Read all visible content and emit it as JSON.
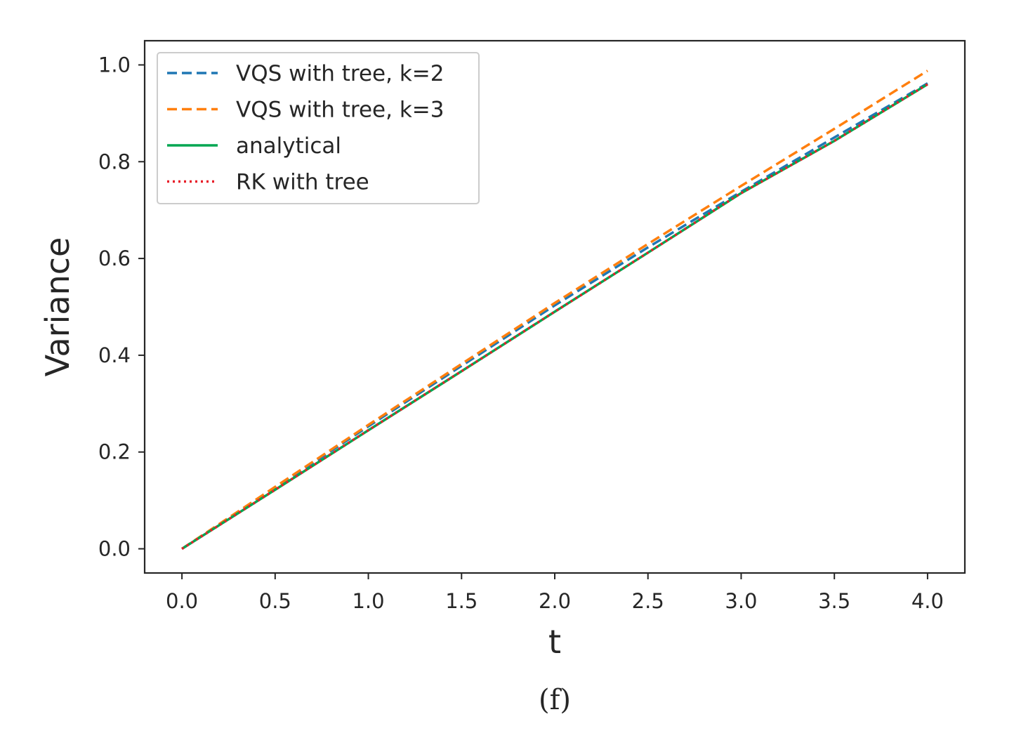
{
  "chart_data": {
    "type": "line",
    "xlabel": "t",
    "ylabel": "Variance",
    "caption": "(f)",
    "xlim": [
      -0.2,
      4.2
    ],
    "ylim": [
      -0.05,
      1.05
    ],
    "xticks": [
      "0.0",
      "0.5",
      "1.0",
      "1.5",
      "2.0",
      "2.5",
      "3.0",
      "3.5",
      "4.0"
    ],
    "yticks": [
      "0.0",
      "0.2",
      "0.4",
      "0.6",
      "0.8",
      "1.0"
    ],
    "grid": false,
    "legend_position": "top-left",
    "series": [
      {
        "name": "VQS with tree, k=2",
        "color": "#1f77b4",
        "linestyle": "dashed",
        "x": [
          0.0,
          0.5,
          1.0,
          1.5,
          2.0,
          2.5,
          3.0,
          3.5,
          4.0
        ],
        "y": [
          0.0,
          0.126,
          0.253,
          0.378,
          0.503,
          0.623,
          0.738,
          0.85,
          0.962
        ]
      },
      {
        "name": "VQS with tree, k=3",
        "color": "#ff7f0e",
        "linestyle": "dashed",
        "x": [
          0.0,
          0.5,
          1.0,
          1.5,
          2.0,
          2.5,
          3.0,
          3.5,
          4.0
        ],
        "y": [
          0.0,
          0.128,
          0.256,
          0.382,
          0.508,
          0.63,
          0.75,
          0.868,
          0.988
        ]
      },
      {
        "name": "analytical",
        "color": "#00a651",
        "linestyle": "solid",
        "x": [
          0.0,
          0.5,
          1.0,
          1.5,
          2.0,
          2.5,
          3.0,
          3.5,
          4.0
        ],
        "y": [
          0.0,
          0.122,
          0.245,
          0.367,
          0.49,
          0.612,
          0.735,
          0.843,
          0.96
        ]
      },
      {
        "name": "RK with tree",
        "color": "#e8202a",
        "linestyle": "dotted",
        "x": [
          0.0,
          0.5,
          1.0,
          1.5,
          2.0,
          2.5,
          3.0,
          3.5,
          4.0
        ],
        "y": [
          0.0,
          0.122,
          0.245,
          0.367,
          0.49,
          0.612,
          0.735,
          0.843,
          0.96
        ]
      }
    ]
  }
}
